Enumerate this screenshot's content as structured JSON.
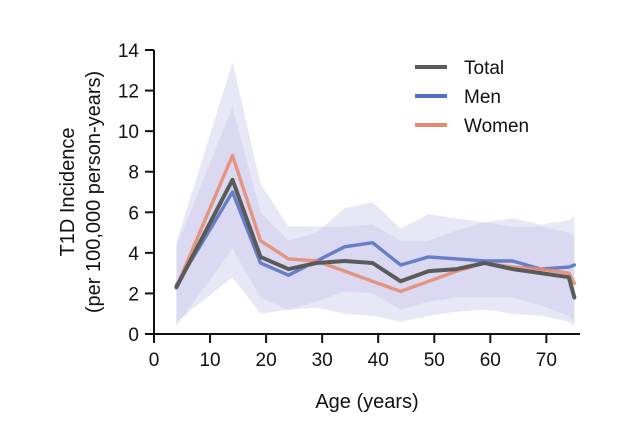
{
  "chart_data": {
    "type": "line",
    "title": "",
    "xlabel": "Age (years)",
    "ylabel_line1": "T1D Incidence",
    "ylabel_line2": "(per 100,000 person-years)",
    "xlim": [
      0,
      76
    ],
    "ylim": [
      0,
      14
    ],
    "x_ticks": [
      0,
      10,
      20,
      30,
      40,
      50,
      60,
      70
    ],
    "y_ticks": [
      0,
      2,
      4,
      6,
      8,
      10,
      12,
      14
    ],
    "x_tick_labels": [
      "0",
      "10",
      "20",
      "30",
      "40",
      "50",
      "60",
      "70"
    ],
    "y_tick_labels": [
      "0",
      "2",
      "4",
      "6",
      "8",
      "10",
      "12",
      "14"
    ],
    "grid": false,
    "legend_position": "top-right",
    "x": [
      4,
      14,
      19,
      24,
      29,
      34,
      39,
      44,
      49,
      54,
      59,
      64,
      69,
      74,
      75
    ],
    "series": [
      {
        "name": "Total",
        "color": "#5a5a5a",
        "values": [
          2.3,
          7.6,
          3.8,
          3.2,
          3.5,
          3.6,
          3.5,
          2.6,
          3.1,
          3.2,
          3.5,
          3.2,
          3.0,
          2.8,
          1.8
        ]
      },
      {
        "name": "Men",
        "color": "#5570c0",
        "values": [
          2.4,
          7.0,
          3.5,
          2.9,
          3.6,
          4.3,
          4.5,
          3.4,
          3.8,
          3.7,
          3.6,
          3.6,
          3.2,
          3.3,
          3.4
        ],
        "ci_low": [
          0.6,
          2.8,
          1.0,
          1.2,
          1.6,
          2.1,
          2.0,
          1.2,
          1.6,
          1.8,
          1.8,
          1.8,
          1.4,
          0.9,
          0.6
        ],
        "ci_high": [
          4.3,
          11.2,
          6.0,
          4.6,
          5.0,
          6.2,
          6.5,
          5.2,
          5.9,
          5.7,
          5.5,
          5.7,
          5.4,
          5.6,
          5.8
        ]
      },
      {
        "name": "Women",
        "color": "#e58a6e",
        "values": [
          2.3,
          8.8,
          4.6,
          3.7,
          3.6,
          3.1,
          2.6,
          2.1,
          2.6,
          3.1,
          3.5,
          3.3,
          3.2,
          3.0,
          2.5
        ],
        "ci_low": [
          0.4,
          4.2,
          1.8,
          1.2,
          1.3,
          1.0,
          0.9,
          0.6,
          0.9,
          1.1,
          1.2,
          1.0,
          0.9,
          0.6,
          0.4
        ],
        "ci_high": [
          4.5,
          13.4,
          7.4,
          5.3,
          5.3,
          5.3,
          5.4,
          4.6,
          4.6,
          5.1,
          5.5,
          5.3,
          5.3,
          5.0,
          4.8
        ]
      }
    ],
    "band_color": "#c9c5ea",
    "axis_color": "#111111"
  }
}
